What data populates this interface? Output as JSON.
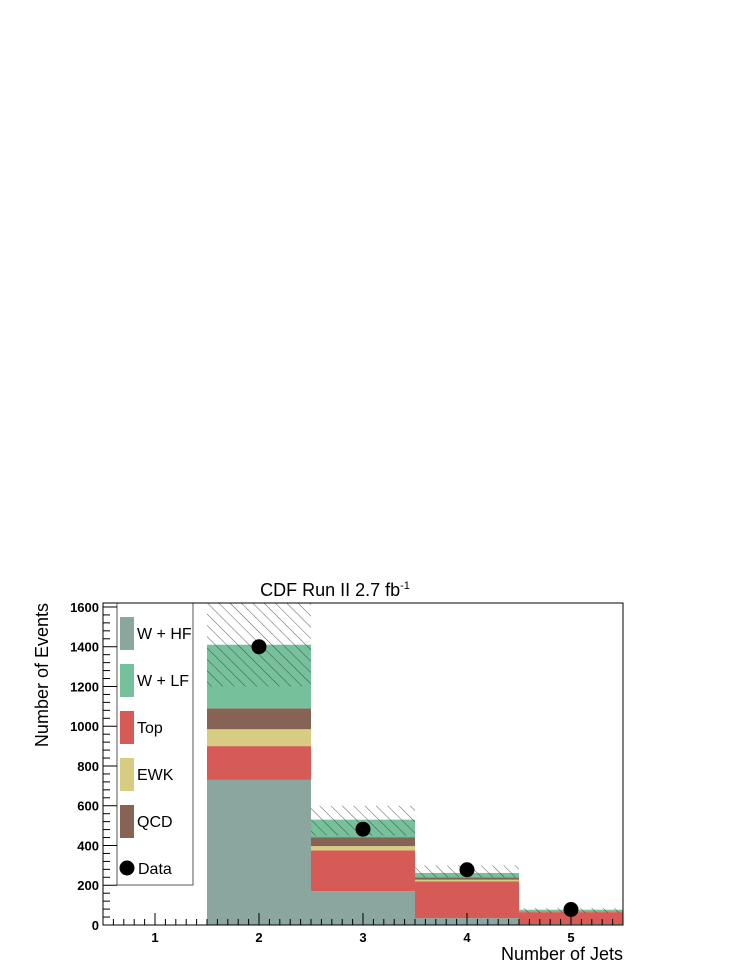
{
  "chart_data": {
    "type": "bar",
    "title": "CDF Run II 2.7 fb",
    "title_superscript": "-1",
    "xlabel": "Number of Jets",
    "ylabel": "Number of Events",
    "xlim": [
      0.5,
      5.5
    ],
    "ylim": [
      0,
      1620
    ],
    "grid": false,
    "legend_position": "top-left",
    "categories": [
      "1",
      "2",
      "3",
      "4",
      "5"
    ],
    "x": [
      1,
      2,
      3,
      4,
      5
    ],
    "y_ticks": [
      0,
      200,
      400,
      600,
      800,
      1000,
      1200,
      1400,
      1600
    ],
    "y_tick_labels": [
      "0",
      "200",
      "400",
      "600",
      "800",
      "1000",
      "1200",
      "1400",
      "1600"
    ],
    "stacked": true,
    "series": [
      {
        "name": "W + HF",
        "color": "#8aa69f",
        "values": [
          0,
          730,
          170,
          35,
          5
        ]
      },
      {
        "name": "Top",
        "color": "#d65a55",
        "values": [
          0,
          170,
          205,
          185,
          60
        ]
      },
      {
        "name": "EWK",
        "color": "#d7cd82",
        "values": [
          0,
          85,
          22,
          8,
          2
        ]
      },
      {
        "name": "QCD",
        "color": "#876355",
        "values": [
          0,
          105,
          45,
          12,
          3
        ]
      },
      {
        "name": "W + LF",
        "color": "#76c09c",
        "values": [
          0,
          320,
          88,
          22,
          7
        ]
      }
    ],
    "legend_order": [
      "W + HF",
      "W + LF",
      "Top",
      "EWK",
      "QCD",
      "Data"
    ],
    "uncertainty_band": {
      "style": "hatched",
      "low": [
        0,
        1200,
        450,
        240,
        60
      ],
      "high": [
        0,
        1620,
        600,
        300,
        85
      ]
    },
    "data_points": {
      "name": "Data",
      "color": "#000000",
      "values": [
        0,
        1400,
        482,
        278,
        78
      ],
      "shown": [
        false,
        true,
        true,
        true,
        true
      ]
    }
  }
}
